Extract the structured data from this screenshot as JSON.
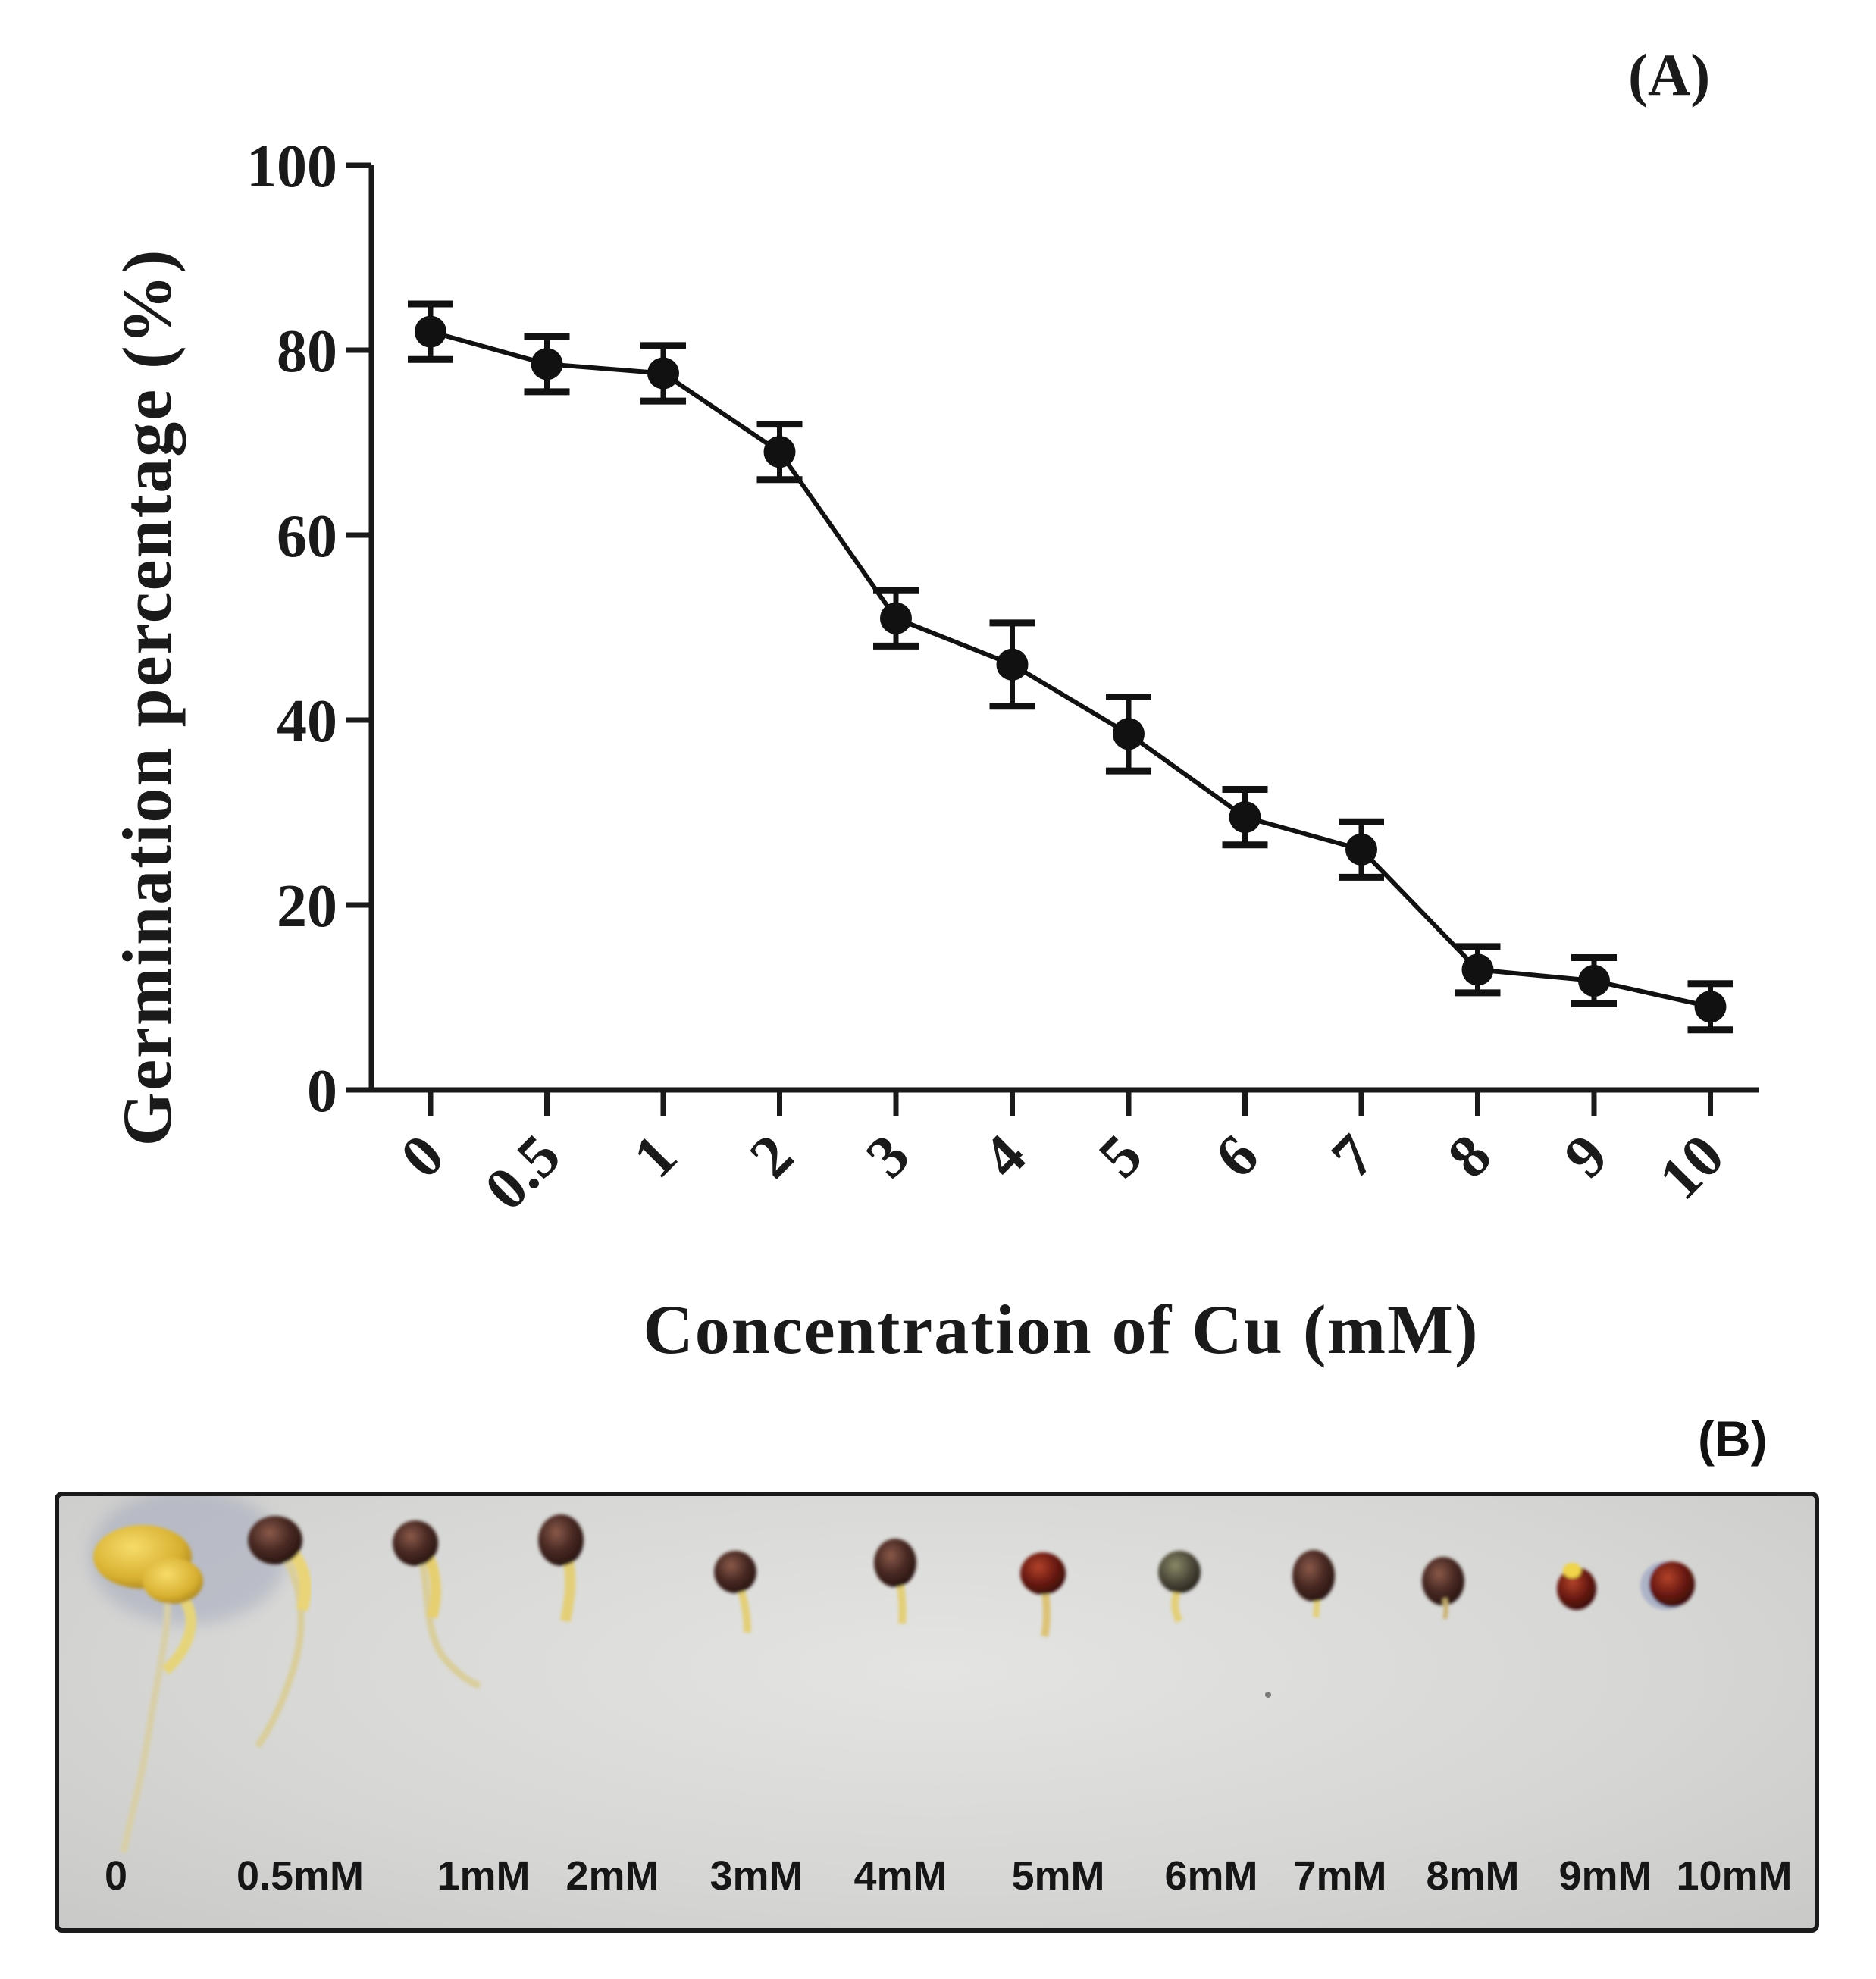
{
  "panel_a": {
    "label": "(A)",
    "chart_data": {
      "type": "line",
      "title": "",
      "xlabel": "Concentration of Cu (mM)",
      "ylabel": "Germination percentage (%)",
      "categories": [
        "0",
        "0.5",
        "1",
        "2",
        "3",
        "4",
        "5",
        "6",
        "7",
        "8",
        "9",
        "10"
      ],
      "values": [
        82,
        78.5,
        77.5,
        69,
        51,
        46,
        38.5,
        29.5,
        26,
        13,
        11.8,
        9
      ],
      "errors": [
        3,
        3,
        3,
        3,
        3,
        4.5,
        4,
        3,
        3,
        2.5,
        2.5,
        2.5
      ],
      "ylim": [
        0,
        100
      ],
      "yticks": [
        0,
        20,
        40,
        60,
        80,
        100
      ],
      "grid": false,
      "legend": "none"
    }
  },
  "panel_b": {
    "label": "(B)",
    "labels": [
      "0",
      "0.5mM",
      "1mM",
      "2mM",
      "3mM",
      "4mM",
      "5mM",
      "6mM",
      "7mM",
      "8mM",
      "9mM",
      "10mM"
    ]
  }
}
